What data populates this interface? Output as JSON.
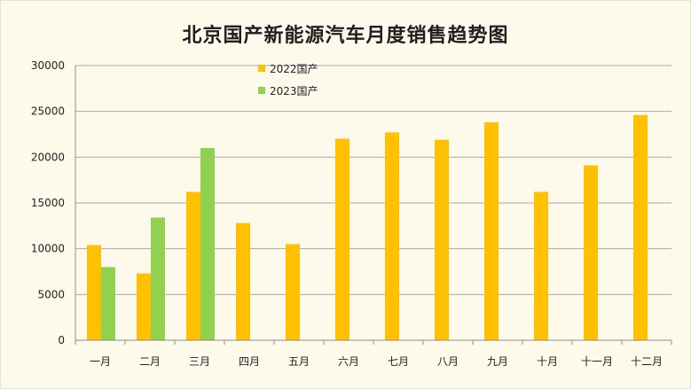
{
  "chart_data": {
    "type": "bar",
    "title": "北京国产新能源汽车月度销售趋势图",
    "xlabel": "",
    "ylabel": "",
    "categories": [
      "一月",
      "二月",
      "三月",
      "四月",
      "五月",
      "六月",
      "七月",
      "八月",
      "九月",
      "十月",
      "十一月",
      "十二月"
    ],
    "series": [
      {
        "name": "2022国产",
        "color": "#ffc000",
        "values": [
          10400,
          7300,
          16200,
          12800,
          10500,
          22000,
          22700,
          21900,
          23800,
          16200,
          19100,
          24600
        ]
      },
      {
        "name": "2023国产",
        "color": "#92d050",
        "values": [
          8000,
          13400,
          21000,
          null,
          null,
          null,
          null,
          null,
          null,
          null,
          null,
          null
        ]
      }
    ],
    "ylim": [
      0,
      30000
    ],
    "yticks": [
      0,
      5000,
      10000,
      15000,
      20000,
      25000,
      30000
    ],
    "grid": true,
    "legend_position": "top-left"
  }
}
